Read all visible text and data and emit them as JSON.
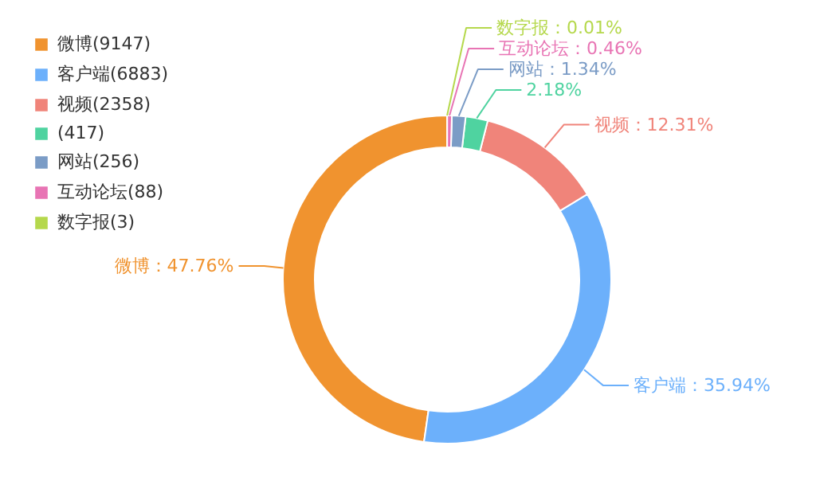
{
  "chart_data": {
    "type": "donut",
    "categories": [
      "微博(9147)",
      "客户端(6883)",
      "视频(2358)",
      "(417)",
      "网站(256)",
      "互动论坛(88)",
      "数字报(3)"
    ],
    "values": [
      47.76,
      35.94,
      12.31,
      2.18,
      1.34,
      0.46,
      0.01
    ],
    "colors": [
      "#f0932f",
      "#6cb0fb",
      "#f0847a",
      "#4fd3a0",
      "#7b9cc6",
      "#e874b4",
      "#b5d84c"
    ],
    "value_labels": [
      "微博：47.76%",
      "客户端：35.94%",
      "视频：12.31%",
      "2.18%",
      "网站：1.34%",
      "互动论坛：0.46%",
      "数字报：0.01%"
    ],
    "legend": "top left"
  }
}
